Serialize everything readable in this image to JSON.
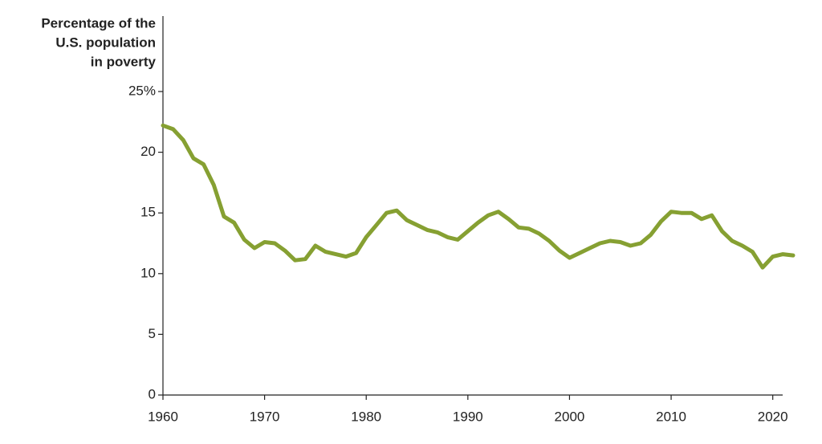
{
  "chart_data": {
    "type": "line",
    "title": [
      "Percentage of the",
      "U.S. population",
      "in poverty"
    ],
    "x": [
      1960,
      1961,
      1962,
      1963,
      1964,
      1965,
      1966,
      1967,
      1968,
      1969,
      1970,
      1971,
      1972,
      1973,
      1974,
      1975,
      1976,
      1977,
      1978,
      1979,
      1980,
      1981,
      1982,
      1983,
      1984,
      1985,
      1986,
      1987,
      1988,
      1989,
      1990,
      1991,
      1992,
      1993,
      1994,
      1995,
      1996,
      1997,
      1998,
      1999,
      2000,
      2001,
      2002,
      2003,
      2004,
      2005,
      2006,
      2007,
      2008,
      2009,
      2010,
      2011,
      2012,
      2013,
      2014,
      2015,
      2016,
      2017,
      2018,
      2019,
      2020,
      2021,
      2022
    ],
    "series": [
      {
        "color": "#86a032",
        "values": [
          22.2,
          21.9,
          21.0,
          19.5,
          19.0,
          17.3,
          14.7,
          14.2,
          12.8,
          12.1,
          12.6,
          12.5,
          11.9,
          11.1,
          11.2,
          12.3,
          11.8,
          11.6,
          11.4,
          11.7,
          13.0,
          14.0,
          15.0,
          15.2,
          14.4,
          14.0,
          13.6,
          13.4,
          13.0,
          12.8,
          13.5,
          14.2,
          14.8,
          15.1,
          14.5,
          13.8,
          13.7,
          13.3,
          12.7,
          11.9,
          11.3,
          11.7,
          12.1,
          12.5,
          12.7,
          12.6,
          12.3,
          12.5,
          13.2,
          14.3,
          15.1,
          15.0,
          15.0,
          14.5,
          14.8,
          13.5,
          12.7,
          12.3,
          11.8,
          10.5,
          11.4,
          11.6,
          11.5
        ]
      }
    ],
    "xlim": [
      1960,
      2022
    ],
    "xticks": [
      1960,
      1970,
      1980,
      1990,
      2000,
      2010,
      2020
    ],
    "ylim": [
      0,
      25
    ],
    "yticks": [
      0,
      5,
      10,
      15,
      20,
      {
        "value": 25,
        "label": "25%"
      }
    ]
  }
}
